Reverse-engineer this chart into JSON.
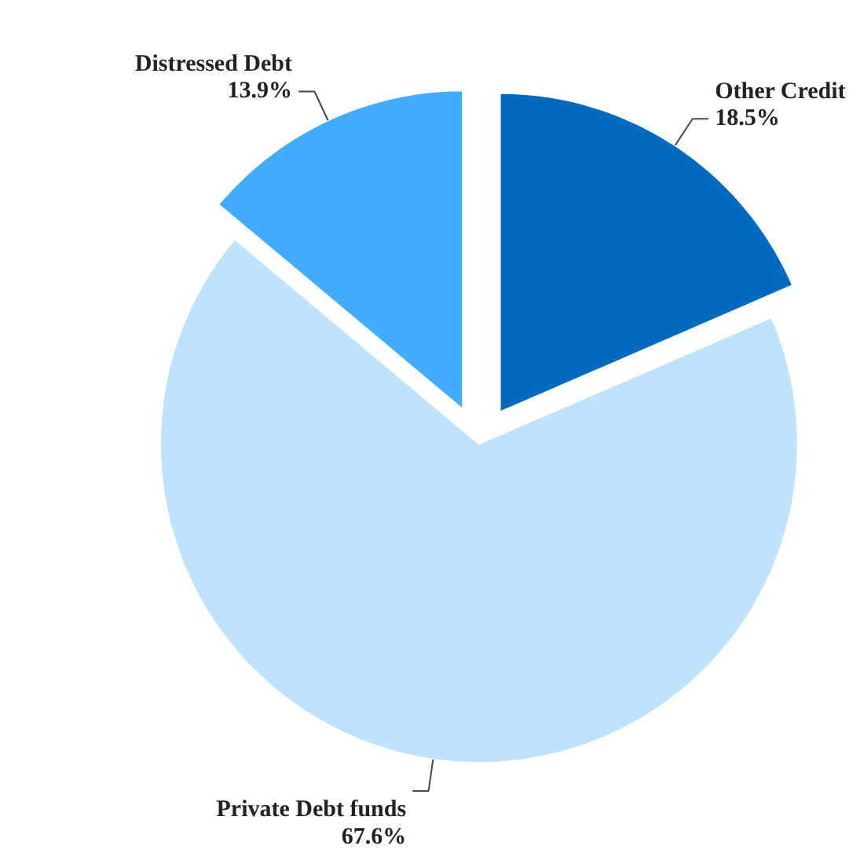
{
  "chart_data": {
    "type": "pie",
    "categories": [
      "Other Credit",
      "Private Debt funds",
      "Distressed Debt"
    ],
    "values": [
      18.5,
      67.6,
      13.9
    ],
    "value_labels": [
      "18.5%",
      "67.6%",
      "13.9%"
    ],
    "colors": [
      "#006ac1",
      "#bfe3ff",
      "#42adff"
    ]
  }
}
